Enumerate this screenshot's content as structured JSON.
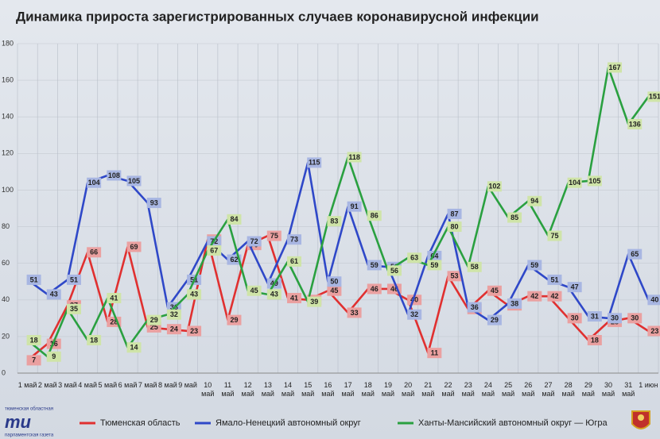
{
  "chart_data": {
    "type": "line",
    "title": "Динамика прироста зарегистрированных случаев коронавирусной инфекции",
    "categories": [
      "1 май",
      "2 май",
      "3 май",
      "4 май",
      "5 май",
      "6 май",
      "7 май",
      "8 май",
      "9 май",
      "10 май",
      "11 май",
      "12 май",
      "13 май",
      "14 май",
      "15 май",
      "16 май",
      "17 май",
      "18 май",
      "19 май",
      "20 май",
      "21 май",
      "22 май",
      "23 май",
      "24 май",
      "25 май",
      "26 май",
      "27 май",
      "28 май",
      "29 май",
      "30 май",
      "31 май",
      "1 июн"
    ],
    "series": [
      {
        "name": "Тюменская область",
        "color": "#e03030",
        "label_color": "#eaa0a0",
        "values": [
          7,
          16,
          37,
          66,
          28,
          69,
          25,
          24,
          23,
          73,
          29,
          70,
          75,
          41,
          40,
          45,
          33,
          46,
          46,
          40,
          11,
          53,
          35,
          45,
          37,
          42,
          42,
          30,
          18,
          28,
          30,
          23
        ]
      },
      {
        "name": "Ямало-Ненецкий автономный округ",
        "color": "#2f48c8",
        "label_color": "#a8b6e2",
        "values": [
          51,
          43,
          51,
          104,
          108,
          105,
          93,
          36,
          51,
          72,
          62,
          72,
          49,
          73,
          115,
          50,
          91,
          59,
          58,
          32,
          64,
          87,
          36,
          29,
          38,
          59,
          51,
          47,
          31,
          30,
          65,
          40
        ]
      },
      {
        "name": "Ханты-Мансийский автономный округ — Югра",
        "color": "#2aa040",
        "label_color": "#cfe4a8",
        "values": [
          18,
          9,
          35,
          18,
          41,
          14,
          29,
          32,
          43,
          67,
          84,
          45,
          43,
          61,
          39,
          83,
          118,
          86,
          56,
          63,
          59,
          80,
          58,
          102,
          85,
          94,
          75,
          104,
          105,
          167,
          136,
          151
        ]
      }
    ],
    "ylim": [
      0,
      180
    ],
    "yticks": [
      0,
      20,
      40,
      60,
      80,
      100,
      120,
      140,
      160,
      180
    ],
    "grid": true,
    "logo": {
      "top": "тюменская областная",
      "mark": "тu",
      "bottom": "парламентская газета"
    }
  }
}
